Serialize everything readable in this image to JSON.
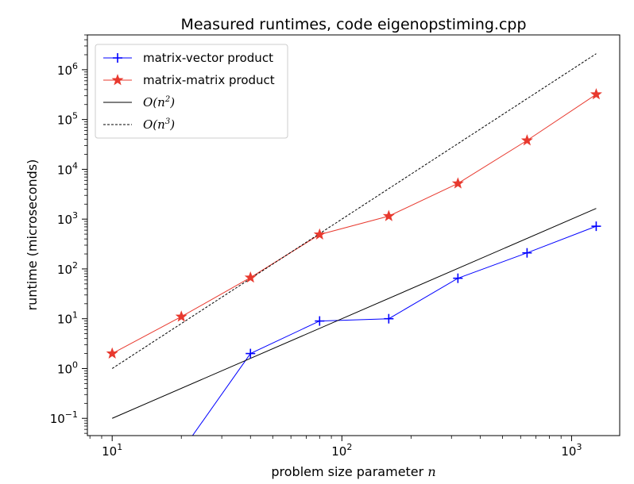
{
  "chart_data": {
    "type": "line",
    "title": "Measured runtimes, code eigenopstiming.cpp",
    "xlabel": "problem size parameter",
    "xlabel_var": "n",
    "ylabel": "runtime (microseconds)",
    "xscale": "log",
    "yscale": "log",
    "xlim": [
      7.8,
      1620
    ],
    "ylim": [
      0.045,
      5000000
    ],
    "grid": false,
    "legend_position": "upper-left",
    "x_ticks": [
      {
        "value": 10,
        "base": "10",
        "exp": "1"
      },
      {
        "value": 100,
        "base": "10",
        "exp": "2"
      },
      {
        "value": 1000,
        "base": "10",
        "exp": "3"
      }
    ],
    "y_ticks": [
      {
        "value": 0.1,
        "base": "10",
        "exp": "−1"
      },
      {
        "value": 1,
        "base": "10",
        "exp": "0"
      },
      {
        "value": 10,
        "base": "10",
        "exp": "1"
      },
      {
        "value": 100,
        "base": "10",
        "exp": "2"
      },
      {
        "value": 1000,
        "base": "10",
        "exp": "3"
      },
      {
        "value": 10000,
        "base": "10",
        "exp": "4"
      },
      {
        "value": 100000,
        "base": "10",
        "exp": "5"
      },
      {
        "value": 1000000,
        "base": "10",
        "exp": "6"
      }
    ],
    "series": [
      {
        "name": "matrix-vector product",
        "color": "#0000ff",
        "marker": "plus",
        "linestyle": "solid",
        "x": [
          10,
          20,
          40,
          80,
          160,
          320,
          640,
          1280
        ],
        "y": [
          0,
          0,
          2,
          9,
          10,
          65,
          210,
          720
        ]
      },
      {
        "name": "matrix-matrix product",
        "color": "#e8392e",
        "marker": "star",
        "linestyle": "solid",
        "x": [
          10,
          20,
          40,
          80,
          160,
          320,
          640,
          1280
        ],
        "y": [
          2,
          11,
          67,
          490,
          1150,
          5200,
          38000,
          320000
        ]
      },
      {
        "name": "O(n^2)",
        "legend_prefix": "O(n",
        "legend_exp": "2",
        "legend_suffix": ")",
        "color": "#000000",
        "marker": "none",
        "linestyle": "solid",
        "x": [
          10,
          1280
        ],
        "y": [
          0.1,
          1638.4
        ]
      },
      {
        "name": "O(n^3)",
        "legend_prefix": "O(n",
        "legend_exp": "3",
        "legend_suffix": ")",
        "color": "#000000",
        "marker": "none",
        "linestyle": "dashed",
        "x": [
          10,
          1280
        ],
        "y": [
          1,
          2097152
        ]
      }
    ]
  }
}
